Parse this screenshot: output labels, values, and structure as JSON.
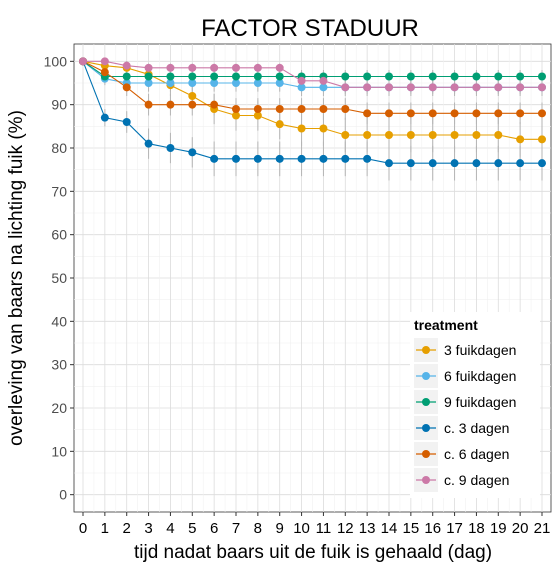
{
  "chart_data": {
    "type": "line",
    "title": "FACTOR STADUUR",
    "xlabel": "tijd nadat baars uit de fuik is gehaald (dag)",
    "ylabel": "overleving van baars na lichting fuik (%)",
    "x": [
      0,
      1,
      2,
      3,
      4,
      5,
      6,
      7,
      8,
      9,
      10,
      11,
      12,
      13,
      14,
      15,
      16,
      17,
      18,
      19,
      20,
      21
    ],
    "xlim": [
      0,
      21
    ],
    "ylim": [
      -4,
      104
    ],
    "yticks": [
      0,
      10,
      20,
      30,
      40,
      50,
      60,
      70,
      80,
      90,
      100
    ],
    "grid": true,
    "legend_title": "treatment",
    "legend_position": "bottom-right",
    "series": [
      {
        "name": "3 fuikdagen",
        "color": "#E69F00",
        "values": [
          100,
          99,
          98.5,
          97,
          94.5,
          92,
          89,
          87.5,
          87.5,
          85.5,
          84.5,
          84.5,
          83,
          83,
          83,
          83,
          83,
          83,
          83,
          83,
          82,
          82
        ],
        "error": [
          0,
          1,
          1.5,
          2,
          2.5,
          3,
          3.5,
          3.5,
          3.5,
          3.5,
          4,
          4,
          4,
          4,
          4,
          4,
          4,
          4,
          4,
          4,
          4,
          4
        ]
      },
      {
        "name": "6 fuikdagen",
        "color": "#56B4E9",
        "values": [
          100,
          96,
          95,
          95,
          95,
          95,
          95,
          95,
          95,
          95,
          94,
          94,
          94,
          94,
          94,
          94,
          94,
          94,
          94,
          94,
          94,
          94
        ],
        "error": [
          0,
          1.5,
          2,
          2,
          2,
          2,
          2,
          2,
          2,
          2,
          2,
          2,
          2,
          2,
          2,
          2,
          2,
          2,
          2,
          2,
          2,
          2
        ]
      },
      {
        "name": "9 fuikdagen",
        "color": "#009E73",
        "values": [
          100,
          96.5,
          96.5,
          96.5,
          96.5,
          96.5,
          96.5,
          96.5,
          96.5,
          96.5,
          96.5,
          96.5,
          96.5,
          96.5,
          96.5,
          96.5,
          96.5,
          96.5,
          96.5,
          96.5,
          96.5,
          96.5
        ],
        "error": [
          0,
          1.5,
          1.5,
          1.5,
          1.5,
          1.5,
          1.5,
          1.5,
          1.5,
          1.5,
          1.5,
          1.5,
          1.5,
          1.5,
          1.5,
          1.5,
          1.5,
          1.5,
          1.5,
          1.5,
          1.5,
          1.5
        ]
      },
      {
        "name": "c. 3 dagen",
        "color": "#0072B2",
        "values": [
          100,
          87,
          86,
          81,
          80,
          79,
          77.5,
          77.5,
          77.5,
          77.5,
          77.5,
          77.5,
          77.5,
          77.5,
          76.5,
          76.5,
          76.5,
          76.5,
          76.5,
          76.5,
          76.5,
          76.5
        ],
        "error": [
          0,
          2,
          2.5,
          3.5,
          3.5,
          3.5,
          4,
          4,
          4,
          4,
          4,
          4,
          4,
          4,
          4,
          4,
          4,
          4,
          4,
          4,
          4,
          4
        ]
      },
      {
        "name": "c. 6 dagen",
        "color": "#D55E00",
        "values": [
          100,
          97.5,
          94,
          90,
          90,
          90,
          90,
          89,
          89,
          89,
          89,
          89,
          89,
          88,
          88,
          88,
          88,
          88,
          88,
          88,
          88,
          88
        ],
        "error": [
          0,
          1.5,
          2,
          2.5,
          2.5,
          2.5,
          2.5,
          2.5,
          2.5,
          2.5,
          2.5,
          2.5,
          2.5,
          2.5,
          2.5,
          2.5,
          2.5,
          2.5,
          2.5,
          2.5,
          2.5,
          2.5
        ]
      },
      {
        "name": "c. 9 dagen",
        "color": "#CC79A7",
        "values": [
          100,
          100,
          99,
          98.5,
          98.5,
          98.5,
          98.5,
          98.5,
          98.5,
          98.5,
          95.5,
          95.5,
          94,
          94,
          94,
          94,
          94,
          94,
          94,
          94,
          94,
          94
        ],
        "error": [
          0,
          0.5,
          1,
          1,
          1,
          1,
          1,
          1,
          1,
          1,
          1.5,
          1.5,
          1.5,
          1.5,
          1.5,
          1.5,
          1.5,
          1.5,
          1.5,
          1.5,
          1.5,
          1.5
        ]
      }
    ]
  }
}
